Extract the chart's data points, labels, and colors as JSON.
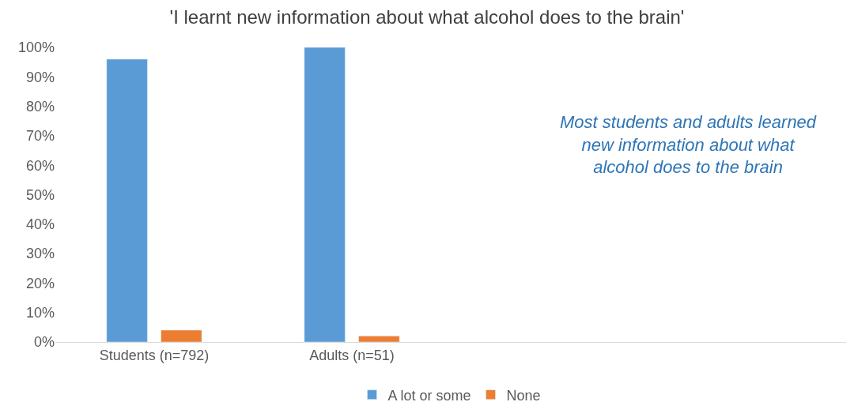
{
  "chart_data": {
    "type": "bar",
    "title": "'I learnt new information about what alcohol does to the brain'",
    "categories": [
      "Students (n=792)",
      "Adults (n=51)",
      null,
      null
    ],
    "series": [
      {
        "name": "A lot or some",
        "color": "#5b9bd5",
        "values": [
          96,
          100,
          null,
          null
        ]
      },
      {
        "name": "None",
        "color": "#ed7d31",
        "values": [
          4,
          2,
          null,
          null
        ]
      }
    ],
    "ylim": [
      0,
      100
    ],
    "yticks": [
      {
        "value": 0,
        "label": "0%"
      },
      {
        "value": 10,
        "label": "10%"
      },
      {
        "value": 20,
        "label": "20%"
      },
      {
        "value": 30,
        "label": "30%"
      },
      {
        "value": 40,
        "label": "40%"
      },
      {
        "value": 50,
        "label": "50%"
      },
      {
        "value": 60,
        "label": "60%"
      },
      {
        "value": 70,
        "label": "70%"
      },
      {
        "value": 80,
        "label": "80%"
      },
      {
        "value": 90,
        "label": "90%"
      },
      {
        "value": 100,
        "label": "100%"
      }
    ],
    "annotations": [
      "Most students and adults learned new information about what alcohol does to the brain"
    ],
    "legend": "bottom",
    "grid": false
  }
}
